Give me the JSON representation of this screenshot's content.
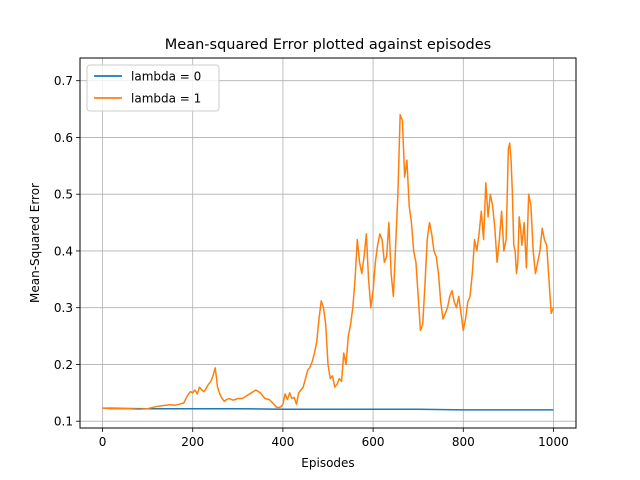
{
  "chart_data": {
    "type": "line",
    "title": "Mean-squared Error plotted against episodes",
    "xlabel": "Episodes",
    "ylabel": "Mean-Squared Error",
    "xlim": [
      -50,
      1050
    ],
    "ylim": [
      0.088,
      0.74
    ],
    "xticks": [
      0,
      200,
      400,
      600,
      800,
      1000
    ],
    "xtick_labels": [
      "0",
      "200",
      "400",
      "600",
      "800",
      "1000"
    ],
    "yticks": [
      0.1,
      0.2,
      0.3,
      0.4,
      0.5,
      0.6,
      0.7
    ],
    "ytick_labels": [
      "0.1",
      "0.2",
      "0.3",
      "0.4",
      "0.5",
      "0.6",
      "0.7"
    ],
    "grid": true,
    "legend_position": "top-left",
    "series": [
      {
        "name": "lambda = 0",
        "color": "#1f77b4",
        "x": [
          0,
          100,
          200,
          300,
          400,
          500,
          600,
          700,
          800,
          900,
          1000
        ],
        "y": [
          0.123,
          0.122,
          0.122,
          0.122,
          0.121,
          0.121,
          0.121,
          0.121,
          0.12,
          0.12,
          0.12
        ]
      },
      {
        "name": "lambda = 1",
        "color": "#ff7f0e",
        "x": [
          0,
          20,
          40,
          60,
          80,
          100,
          110,
          120,
          130,
          140,
          150,
          160,
          170,
          180,
          185,
          190,
          195,
          200,
          205,
          210,
          215,
          220,
          225,
          230,
          235,
          240,
          245,
          250,
          255,
          260,
          265,
          270,
          275,
          280,
          290,
          300,
          310,
          320,
          330,
          340,
          350,
          360,
          370,
          380,
          385,
          390,
          395,
          400,
          405,
          410,
          415,
          420,
          425,
          430,
          435,
          440,
          445,
          450,
          455,
          460,
          465,
          470,
          475,
          480,
          485,
          490,
          495,
          500,
          505,
          510,
          515,
          520,
          525,
          530,
          535,
          540,
          545,
          550,
          555,
          560,
          565,
          570,
          575,
          580,
          585,
          590,
          595,
          600,
          605,
          610,
          615,
          620,
          625,
          630,
          635,
          640,
          645,
          650,
          655,
          660,
          665,
          670,
          675,
          680,
          685,
          690,
          695,
          700,
          705,
          710,
          715,
          720,
          725,
          730,
          735,
          740,
          745,
          750,
          755,
          760,
          765,
          770,
          775,
          780,
          785,
          790,
          795,
          800,
          805,
          810,
          815,
          820,
          825,
          830,
          835,
          840,
          845,
          850,
          855,
          860,
          865,
          870,
          875,
          880,
          885,
          890,
          895,
          900,
          903,
          906,
          909,
          912,
          915,
          918,
          921,
          924,
          927,
          930,
          935,
          940,
          945,
          950,
          955,
          960,
          965,
          970,
          975,
          980,
          985,
          990,
          995,
          1000
        ],
        "y": [
          0.123,
          0.122,
          0.122,
          0.122,
          0.121,
          0.122,
          0.124,
          0.126,
          0.127,
          0.128,
          0.129,
          0.128,
          0.13,
          0.132,
          0.14,
          0.147,
          0.152,
          0.15,
          0.155,
          0.148,
          0.16,
          0.155,
          0.152,
          0.158,
          0.165,
          0.17,
          0.18,
          0.194,
          0.16,
          0.148,
          0.14,
          0.135,
          0.138,
          0.14,
          0.137,
          0.14,
          0.14,
          0.145,
          0.15,
          0.155,
          0.15,
          0.14,
          0.138,
          0.13,
          0.125,
          0.124,
          0.125,
          0.13,
          0.148,
          0.138,
          0.15,
          0.14,
          0.142,
          0.13,
          0.15,
          0.155,
          0.16,
          0.175,
          0.19,
          0.195,
          0.205,
          0.22,
          0.24,
          0.28,
          0.312,
          0.3,
          0.27,
          0.2,
          0.175,
          0.18,
          0.16,
          0.165,
          0.175,
          0.17,
          0.22,
          0.2,
          0.25,
          0.27,
          0.3,
          0.35,
          0.42,
          0.38,
          0.36,
          0.39,
          0.43,
          0.35,
          0.3,
          0.33,
          0.38,
          0.41,
          0.43,
          0.42,
          0.38,
          0.39,
          0.45,
          0.36,
          0.32,
          0.41,
          0.5,
          0.64,
          0.63,
          0.53,
          0.56,
          0.48,
          0.45,
          0.4,
          0.38,
          0.32,
          0.26,
          0.27,
          0.34,
          0.42,
          0.45,
          0.43,
          0.4,
          0.39,
          0.36,
          0.31,
          0.28,
          0.29,
          0.3,
          0.32,
          0.33,
          0.31,
          0.3,
          0.32,
          0.29,
          0.26,
          0.28,
          0.31,
          0.32,
          0.36,
          0.42,
          0.4,
          0.43,
          0.47,
          0.42,
          0.52,
          0.46,
          0.5,
          0.48,
          0.44,
          0.38,
          0.42,
          0.47,
          0.4,
          0.42,
          0.58,
          0.59,
          0.56,
          0.5,
          0.41,
          0.4,
          0.36,
          0.38,
          0.46,
          0.44,
          0.41,
          0.45,
          0.37,
          0.5,
          0.48,
          0.4,
          0.36,
          0.38,
          0.4,
          0.44,
          0.42,
          0.41,
          0.35,
          0.29,
          0.3
        ],
        "y2_note": ""
      }
    ]
  }
}
